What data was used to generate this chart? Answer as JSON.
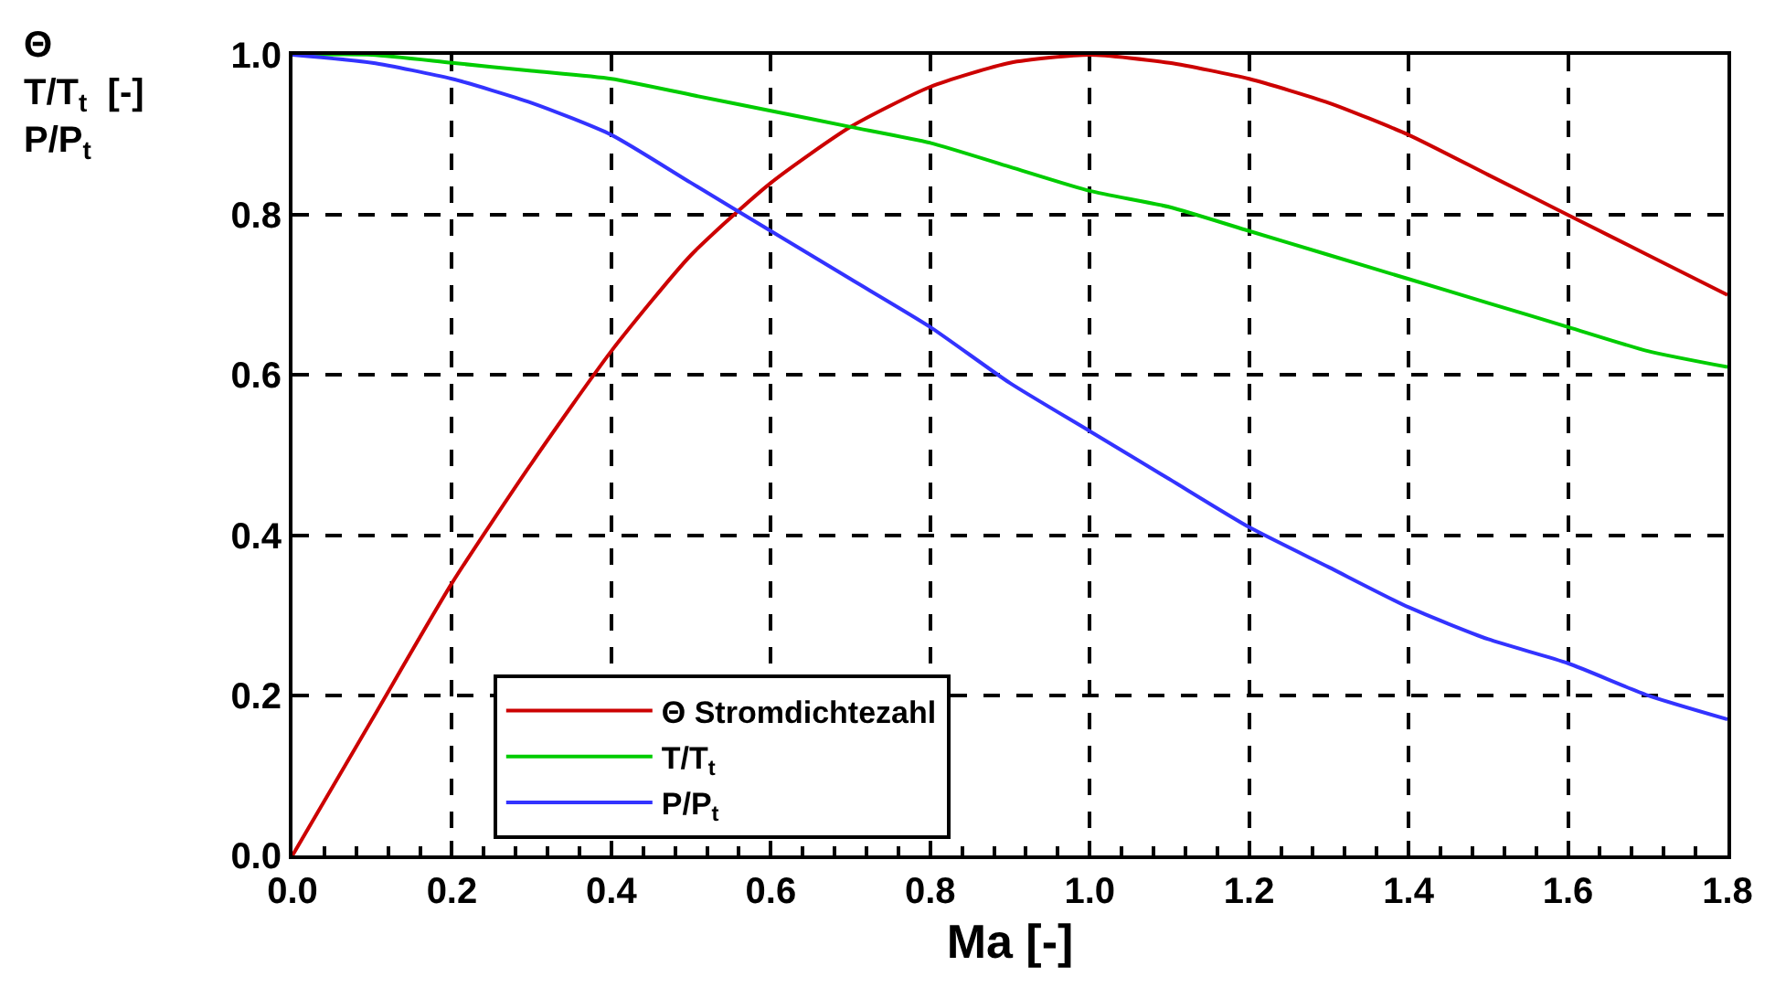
{
  "chart_data": {
    "type": "line",
    "x": [
      0,
      0.1,
      0.2,
      0.3,
      0.4,
      0.5,
      0.6,
      0.7,
      0.8,
      0.9,
      1.0,
      1.1,
      1.2,
      1.3,
      1.4,
      1.5,
      1.6,
      1.7,
      1.8
    ],
    "series": [
      {
        "name": "Θ Stromdichtezahl",
        "color": "#cc0000",
        "values": [
          0,
          0.17,
          0.34,
          0.49,
          0.63,
          0.75,
          0.84,
          0.91,
          0.96,
          0.99,
          1.0,
          0.99,
          0.97,
          0.94,
          0.9,
          0.85,
          0.8,
          0.75,
          0.7
        ]
      },
      {
        "name": "T/T$_{t}$",
        "color": "#00cc00",
        "values": [
          1.0,
          1.0,
          0.99,
          0.98,
          0.97,
          0.95,
          0.93,
          0.91,
          0.89,
          0.86,
          0.83,
          0.81,
          0.78,
          0.75,
          0.72,
          0.69,
          0.66,
          0.63,
          0.61
        ]
      },
      {
        "name": "P/P$_{t}$",
        "color": "#3333ff",
        "values": [
          1.0,
          0.99,
          0.97,
          0.94,
          0.9,
          0.84,
          0.78,
          0.72,
          0.66,
          0.59,
          0.53,
          0.47,
          0.41,
          0.36,
          0.31,
          0.27,
          0.24,
          0.2,
          0.17
        ]
      }
    ],
    "xlabel": "Ma [-]",
    "ylabel": "Θ\nT/T$_{t}$  [-]\nP/P$_{t}$",
    "xlim": [
      0,
      1.8
    ],
    "xticks": [
      {
        "value": 0,
        "label": "0.0"
      },
      0.2,
      0.4,
      0.6,
      0.8,
      {
        "value": 1,
        "label": "1.0"
      },
      1.2,
      1.4,
      1.6,
      1.8
    ],
    "ylim": [
      0,
      1
    ],
    "yticks": [
      {
        "value": 0,
        "label": "0.0"
      },
      0.2,
      0.4,
      0.6,
      0.8,
      {
        "value": 1,
        "label": "1.0"
      }
    ],
    "grid": true,
    "legend": "bottom",
    "line_style": "solid"
  }
}
